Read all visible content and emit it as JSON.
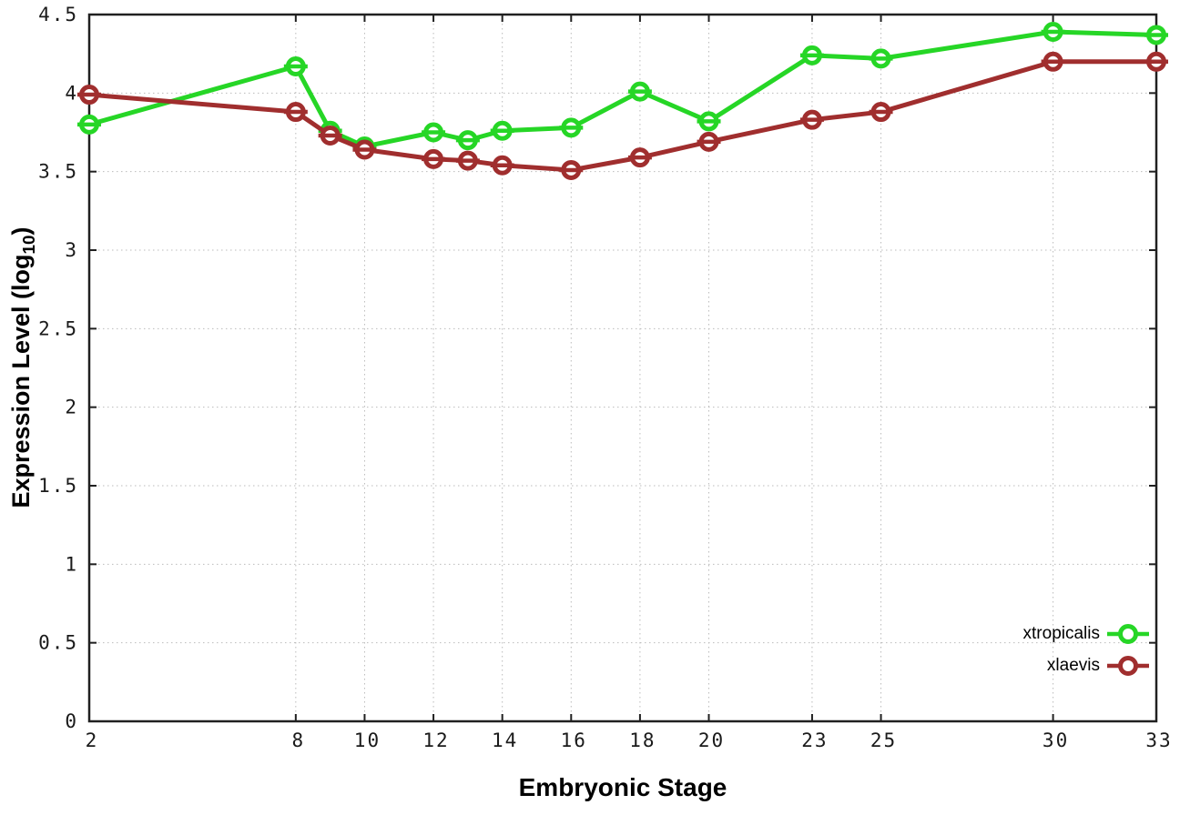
{
  "figure": {
    "background": "#ffffff",
    "border_color": "#202020",
    "grid_color": "#bbbbbb",
    "ylabel_main": "Expression Level (log",
    "ylabel_sub": "10",
    "ylabel_close": ")"
  },
  "chart_data": {
    "type": "line",
    "title": "",
    "xlabel": "Embryonic Stage",
    "ylabel": "Expression Level (log10)",
    "x": [
      2,
      8,
      9,
      10,
      12,
      13,
      14,
      16,
      18,
      20,
      23,
      25,
      30,
      33
    ],
    "xlim": [
      2,
      33
    ],
    "ylim": [
      0,
      4.5
    ],
    "x_ticks": [
      2,
      8,
      10,
      12,
      14,
      16,
      18,
      20,
      23,
      25,
      30,
      33
    ],
    "x_tick_labels": [
      "2",
      "8",
      "10",
      "12",
      "14",
      "16",
      "18",
      "20",
      "23",
      "25",
      "30",
      "33"
    ],
    "y_ticks": [
      0,
      0.5,
      1,
      1.5,
      2,
      2.5,
      3,
      3.5,
      4,
      4.5
    ],
    "y_tick_labels": [
      "0",
      "0.5",
      "1",
      "1.5",
      "2",
      "2.5",
      "3",
      "3.5",
      "4",
      "4.5"
    ],
    "grid": true,
    "legend_position": "bottom-right",
    "marker": "circle-with-horizontal-bar",
    "series": [
      {
        "name": "xtropicalis",
        "color": "#26d626",
        "values": [
          3.8,
          4.17,
          3.76,
          3.66,
          3.75,
          3.7,
          3.76,
          3.78,
          4.01,
          3.82,
          4.24,
          4.22,
          4.39,
          4.37
        ]
      },
      {
        "name": "xlaevis",
        "color": "#a02e2e",
        "values": [
          3.99,
          3.88,
          3.73,
          3.64,
          3.58,
          3.57,
          3.54,
          3.51,
          3.59,
          3.69,
          3.83,
          3.88,
          4.2,
          4.2
        ]
      }
    ]
  }
}
